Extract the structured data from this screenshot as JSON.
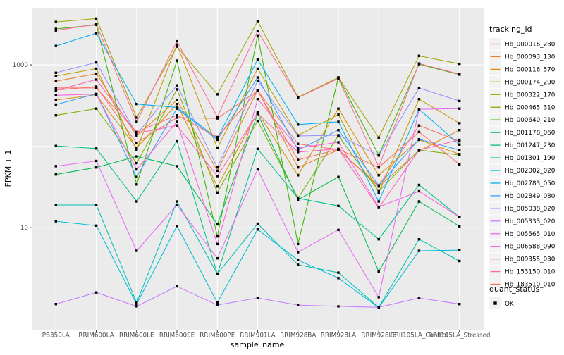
{
  "chart_data": {
    "type": "line",
    "title": "",
    "xlabel": "sample_name",
    "ylabel": "FPKM + 1",
    "y_scale": "log10",
    "ylim": [
      0.56,
      5500
    ],
    "grid": "on",
    "legend_position": "right",
    "legend_title": "tracking_id",
    "y_major_ticks": [
      {
        "value": 10,
        "label": "10"
      },
      {
        "value": 1000,
        "label": "1000"
      }
    ],
    "y_minor_ticks": [
      1,
      100
    ],
    "categories": [
      "PB350LA",
      "RRIM600LA",
      "RRIM600LE",
      "RRIM600SE",
      "RRIM600PE",
      "RRIM901LA",
      "RRIM928BA",
      "RRIM928LA",
      "RRIM928LE",
      "RRII105LA_Control",
      "RRII105LA_Stressed"
    ],
    "series": [
      {
        "name": "Hb_000016_280",
        "color": "#F8766D",
        "values": [
          490,
          540,
          110,
          225,
          220,
          480,
          107,
          91,
          33,
          180,
          115
        ]
      },
      {
        "name": "Hb_000093_130",
        "color": "#EA8331",
        "values": [
          630,
          780,
          135,
          370,
          50,
          490,
          55,
          90,
          32,
          88,
          158
        ]
      },
      {
        "name": "Hb_000116_570",
        "color": "#D89000",
        "values": [
          370,
          430,
          95,
          330,
          32,
          260,
          44,
          290,
          44,
          120,
          80
        ]
      },
      {
        "name": "Hb_000174_200",
        "color": "#C09B00",
        "values": [
          730,
          900,
          90,
          1780,
          95,
          900,
          136,
          245,
          27,
          380,
          192
        ]
      },
      {
        "name": "Hb_000322_170",
        "color": "#A3A500",
        "values": [
          3370,
          3700,
          225,
          1680,
          435,
          3450,
          400,
          700,
          128,
          1290,
          1030
        ]
      },
      {
        "name": "Hb_000465_310",
        "color": "#7CAE00",
        "values": [
          240,
          290,
          62,
          500,
          27,
          205,
          23,
          135,
          28,
          90,
          78
        ]
      },
      {
        "name": "Hb_000640_210",
        "color": "#39B600",
        "values": [
          2770,
          3100,
          34,
          1130,
          7.8,
          2300,
          6.3,
          700,
          78,
          1020,
          760
        ]
      },
      {
        "name": "Hb_001178_060",
        "color": "#00BB4E",
        "values": [
          45,
          55,
          75,
          57,
          11,
          250,
          22,
          42,
          2.9,
          21,
          10.4
        ]
      },
      {
        "name": "Hb_001247_230",
        "color": "#00C087",
        "values": [
          101,
          94,
          21,
          115,
          2.7,
          93,
          23,
          18.5,
          7.2,
          33.5,
          13.5
        ]
      },
      {
        "name": "Hb_001301_190",
        "color": "#00C0B2",
        "values": [
          19,
          19,
          1.2,
          21,
          2.7,
          11.2,
          3.5,
          2.8,
          1.05,
          7.2,
          3.9
        ]
      },
      {
        "name": "Hb_002002_020",
        "color": "#00BCD8",
        "values": [
          12,
          10.6,
          1.15,
          10.5,
          1.2,
          9.5,
          4.0,
          2.4,
          1.04,
          5.2,
          5.3
        ]
      },
      {
        "name": "Hb_002783_050",
        "color": "#00B0F6",
        "values": [
          1710,
          2450,
          330,
          300,
          125,
          1160,
          185,
          200,
          21,
          285,
          105
        ]
      },
      {
        "name": "Hb_002849_080",
        "color": "#35A2FF",
        "values": [
          325,
          440,
          42,
          290,
          120,
          700,
          90,
          158,
          33,
          122,
          90
        ]
      },
      {
        "name": "Hb_005038_020",
        "color": "#9590FF",
        "values": [
          800,
          1070,
          140,
          560,
          55,
          640,
          134,
          137,
          77,
          520,
          360
        ]
      },
      {
        "name": "Hb_005333_020",
        "color": "#C77CFF",
        "values": [
          1.15,
          1.6,
          1.08,
          1.9,
          1.12,
          1.37,
          1.12,
          1.08,
          1.05,
          1.37,
          1.15
        ]
      },
      {
        "name": "Hb_005565_010",
        "color": "#E76BF3",
        "values": [
          57,
          66,
          5.2,
          19,
          4.2,
          52,
          5.0,
          9.4,
          1.4,
          285,
          290
        ]
      },
      {
        "name": "Hb_006588_090",
        "color": "#FA62DB",
        "values": [
          423,
          437,
          52,
          200,
          6.3,
          380,
          95,
          112,
          18,
          28,
          13.5
        ]
      },
      {
        "name": "Hb_009355_030",
        "color": "#FF62BC",
        "values": [
          485,
          660,
          145,
          180,
          43,
          255,
          85,
          93,
          17.5,
          90,
          120
        ]
      },
      {
        "name": "Hb_153150_010",
        "color": "#FF6A98",
        "values": [
          2650,
          3150,
          200,
          1950,
          230,
          2600,
          395,
          680,
          56,
          1040,
          770
        ]
      },
      {
        "name": "Hb_183510_010",
        "color": "#FF6C67",
        "values": [
          520,
          520,
          150,
          240,
          130,
          480,
          68,
          92,
          55,
          150,
          60
        ]
      }
    ],
    "point_legend": {
      "title": "quant_status",
      "items": [
        {
          "label": "OK",
          "shape": "square",
          "color": "#000000"
        }
      ]
    }
  },
  "style": {
    "panel_bg": "#EBEBEB",
    "grid_color": "#FFFFFF",
    "axis_text_color": "#4D4D4D",
    "tick_mark_color": "#333333",
    "legend_key_bg": "#F2F2F2",
    "point_color": "#000000"
  }
}
